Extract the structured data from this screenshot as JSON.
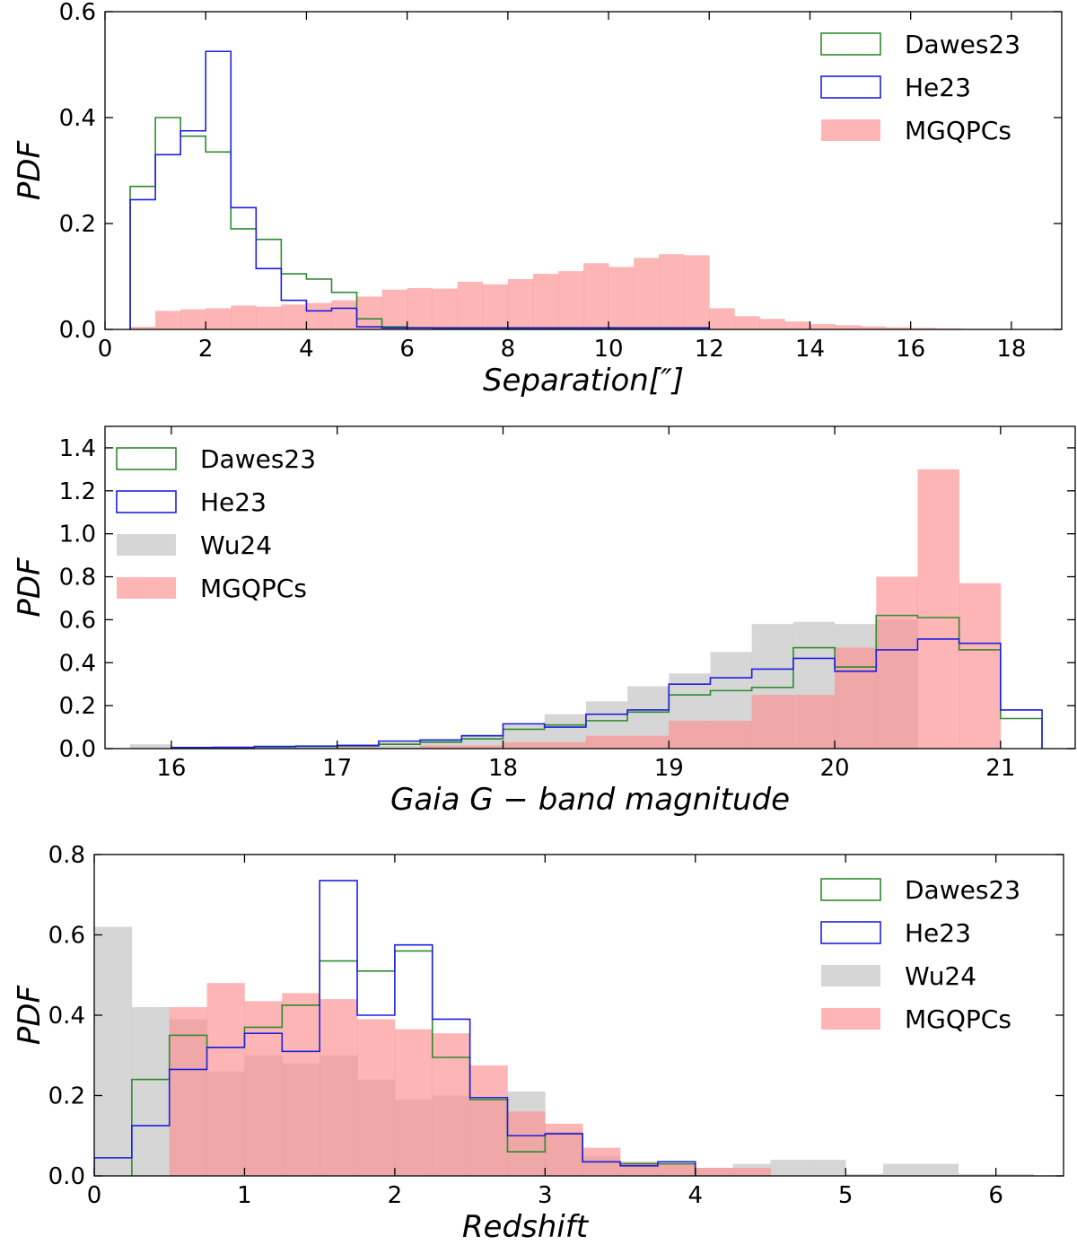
{
  "chart_data": [
    {
      "type": "histogram",
      "xlabel": "Separation[″]",
      "ylabel": "PDF",
      "xlim": [
        0,
        19
      ],
      "ylim": [
        0,
        0.6
      ],
      "xticks": [
        0,
        2,
        4,
        6,
        8,
        10,
        12,
        14,
        16,
        18
      ],
      "xticklabels": [
        "0",
        "2",
        "4",
        "6",
        "8",
        "10",
        "12",
        "14",
        "16",
        "18"
      ],
      "yticks": [
        0,
        0.2,
        0.4,
        0.6
      ],
      "yticklabels": [
        "0.0",
        "0.2",
        "0.4",
        "0.6"
      ],
      "legend_position": "upper-right",
      "series": [
        {
          "name": "Dawes23",
          "style": "step",
          "color": "#2e8b2e",
          "bins": [
            0.5,
            1.0,
            1.5,
            2.0,
            2.5,
            3.0,
            3.5,
            4.0,
            4.5,
            5.0,
            5.5,
            6.0,
            6.5,
            7.0,
            7.5,
            8.0,
            8.5,
            9.0,
            9.5,
            10.0,
            10.5,
            11.0,
            11.5,
            12.0
          ],
          "values": [
            0.27,
            0.4,
            0.365,
            0.335,
            0.19,
            0.17,
            0.105,
            0.095,
            0.07,
            0.02,
            0.005,
            0.003,
            0.002,
            0.002,
            0.002,
            0.002,
            0.002,
            0.002,
            0.002,
            0.002,
            0.002,
            0.002,
            0.002
          ]
        },
        {
          "name": "He23",
          "style": "step",
          "color": "#1f1fe0",
          "bins": [
            0.5,
            1.0,
            1.5,
            2.0,
            2.5,
            3.0,
            3.5,
            4.0,
            4.5,
            5.0,
            5.5,
            6.0,
            6.5,
            7.0,
            7.5,
            8.0,
            8.5,
            9.0,
            9.5,
            10.0,
            10.5,
            11.0,
            11.5,
            12.0
          ],
          "values": [
            0.245,
            0.33,
            0.375,
            0.525,
            0.23,
            0.115,
            0.055,
            0.035,
            0.04,
            0.005,
            0.003,
            0.003,
            0.003,
            0.003,
            0.003,
            0.003,
            0.003,
            0.003,
            0.003,
            0.003,
            0.003,
            0.003,
            0.003
          ]
        },
        {
          "name": "MGQPCs",
          "style": "filled",
          "color": "#fc8d8d",
          "bins": [
            0.5,
            1.0,
            1.5,
            2.0,
            2.5,
            3.0,
            3.5,
            4.0,
            4.5,
            5.0,
            5.5,
            6.0,
            6.5,
            7.0,
            7.5,
            8.0,
            8.5,
            9.0,
            9.5,
            10.0,
            10.5,
            11.0,
            11.5,
            12.0,
            12.5,
            13.0,
            13.5,
            14.0,
            14.5,
            15.0,
            15.5,
            16.0,
            16.5,
            17.0
          ],
          "values": [
            0.005,
            0.035,
            0.038,
            0.04,
            0.045,
            0.043,
            0.047,
            0.05,
            0.055,
            0.062,
            0.075,
            0.078,
            0.077,
            0.09,
            0.085,
            0.095,
            0.105,
            0.11,
            0.125,
            0.118,
            0.135,
            0.142,
            0.14,
            0.04,
            0.025,
            0.02,
            0.015,
            0.01,
            0.008,
            0.006,
            0.004,
            0.003,
            0.002
          ]
        }
      ]
    },
    {
      "type": "histogram",
      "xlabel": "Gaia G − band magnitude",
      "ylabel": "PDF",
      "xlim": [
        15.6,
        21.45
      ],
      "ylim": [
        0,
        1.5
      ],
      "xticks": [
        16,
        17,
        18,
        19,
        20,
        21
      ],
      "xticklabels": [
        "16",
        "17",
        "18",
        "19",
        "20",
        "21"
      ],
      "yticks": [
        0,
        0.2,
        0.4,
        0.6,
        0.8,
        1.0,
        1.2,
        1.4
      ],
      "yticklabels": [
        "0.0",
        "0.2",
        "0.4",
        "0.6",
        "0.8",
        "1.0",
        "1.2",
        "1.4"
      ],
      "legend_position": "upper-left",
      "series": [
        {
          "name": "Dawes23",
          "style": "step",
          "color": "#2e8b2e",
          "bins": [
            16.0,
            16.25,
            16.5,
            16.75,
            17.0,
            17.25,
            17.5,
            17.75,
            18.0,
            18.25,
            18.5,
            18.75,
            19.0,
            19.25,
            19.5,
            19.75,
            20.0,
            20.25,
            20.5,
            20.75,
            21.0,
            21.25
          ],
          "values": [
            0.005,
            0.005,
            0.008,
            0.01,
            0.012,
            0.02,
            0.03,
            0.045,
            0.09,
            0.11,
            0.13,
            0.17,
            0.25,
            0.27,
            0.285,
            0.47,
            0.38,
            0.62,
            0.61,
            0.46,
            0.14
          ]
        },
        {
          "name": "He23",
          "style": "step",
          "color": "#1f1fe0",
          "bins": [
            16.0,
            16.25,
            16.5,
            16.75,
            17.0,
            17.25,
            17.5,
            17.75,
            18.0,
            18.25,
            18.5,
            18.75,
            19.0,
            19.25,
            19.5,
            19.75,
            20.0,
            20.25,
            20.5,
            20.75,
            21.0,
            21.25
          ],
          "values": [
            0.005,
            0.006,
            0.01,
            0.012,
            0.015,
            0.035,
            0.04,
            0.06,
            0.115,
            0.1,
            0.16,
            0.18,
            0.3,
            0.33,
            0.37,
            0.42,
            0.36,
            0.46,
            0.51,
            0.49,
            0.18
          ]
        },
        {
          "name": "Wu24",
          "style": "filled",
          "color": "#cccccc",
          "bins": [
            15.75,
            16.0,
            16.25,
            16.5,
            16.75,
            17.0,
            17.25,
            17.5,
            17.75,
            18.0,
            18.25,
            18.5,
            18.75,
            19.0,
            19.25,
            19.5,
            19.75,
            20.0,
            20.25,
            20.5
          ],
          "values": [
            0.02,
            0.01,
            0.01,
            0.01,
            0.015,
            0.02,
            0.03,
            0.045,
            0.065,
            0.11,
            0.16,
            0.22,
            0.29,
            0.35,
            0.45,
            0.58,
            0.59,
            0.58,
            0.6
          ]
        },
        {
          "name": "MGQPCs",
          "style": "filled",
          "color": "#fc8d8d",
          "bins": [
            17.0,
            17.5,
            18.0,
            18.5,
            19.0,
            19.5,
            20.0,
            20.25,
            20.5,
            20.75,
            21.0
          ],
          "values": [
            0.005,
            0.015,
            0.03,
            0.06,
            0.13,
            0.25,
            0.47,
            0.8,
            1.3,
            0.77
          ]
        }
      ]
    },
    {
      "type": "histogram",
      "xlabel": "Redshift",
      "ylabel": "PDF",
      "xlim": [
        0,
        6.45
      ],
      "ylim": [
        0,
        0.8
      ],
      "xticks": [
        0,
        1,
        2,
        3,
        4,
        5,
        6
      ],
      "xticklabels": [
        "0",
        "1",
        "2",
        "3",
        "4",
        "5",
        "6"
      ],
      "yticks": [
        0,
        0.2,
        0.4,
        0.6,
        0.8
      ],
      "yticklabels": [
        "0.0",
        "0.2",
        "0.4",
        "0.6",
        "0.8"
      ],
      "legend_position": "upper-right",
      "series": [
        {
          "name": "Dawes23",
          "style": "step",
          "color": "#2e8b2e",
          "bins": [
            0.25,
            0.5,
            0.75,
            1.0,
            1.25,
            1.5,
            1.75,
            2.0,
            2.25,
            2.5,
            2.75,
            3.0,
            3.25,
            3.5,
            3.75,
            4.0
          ],
          "values": [
            0.24,
            0.35,
            0.32,
            0.37,
            0.425,
            0.535,
            0.51,
            0.56,
            0.295,
            0.19,
            0.06,
            0.105,
            0.035,
            0.03,
            0.03
          ]
        },
        {
          "name": "He23",
          "style": "step",
          "color": "#1f1fe0",
          "bins": [
            0.0,
            0.25,
            0.5,
            0.75,
            1.0,
            1.25,
            1.5,
            1.75,
            2.0,
            2.25,
            2.5,
            2.75,
            3.0,
            3.25,
            3.5,
            3.75,
            4.0
          ],
          "values": [
            0.045,
            0.125,
            0.265,
            0.32,
            0.355,
            0.31,
            0.735,
            0.4,
            0.575,
            0.39,
            0.195,
            0.1,
            0.105,
            0.035,
            0.025,
            0.035
          ]
        },
        {
          "name": "Wu24",
          "style": "filled",
          "color": "#cccccc",
          "bins": [
            0.0,
            0.25,
            0.5,
            0.75,
            1.0,
            1.25,
            1.5,
            1.75,
            2.0,
            2.25,
            2.5,
            2.75,
            3.0,
            3.25,
            3.5,
            3.75,
            4.0,
            4.25,
            4.5,
            4.75,
            5.0,
            5.25,
            5.5,
            5.75,
            6.0,
            6.25
          ],
          "values": [
            0.62,
            0.42,
            0.39,
            0.26,
            0.3,
            0.28,
            0.3,
            0.24,
            0.19,
            0.2,
            0.19,
            0.21,
            0.11,
            0.05,
            0.035,
            0.03,
            0.02,
            0.03,
            0.04,
            0.04,
            0.005,
            0.03,
            0.03,
            0.005,
            0.005
          ]
        },
        {
          "name": "MGQPCs",
          "style": "filled",
          "color": "#fc8d8d",
          "bins": [
            0.5,
            0.75,
            1.0,
            1.25,
            1.5,
            1.75,
            2.0,
            2.25,
            2.5,
            2.75,
            3.0,
            3.25,
            3.5,
            3.75,
            4.0,
            4.25,
            4.5
          ],
          "values": [
            0.42,
            0.48,
            0.435,
            0.455,
            0.44,
            0.39,
            0.365,
            0.355,
            0.275,
            0.16,
            0.13,
            0.07,
            0.035,
            0.03,
            0.02,
            0.02
          ]
        }
      ]
    }
  ]
}
